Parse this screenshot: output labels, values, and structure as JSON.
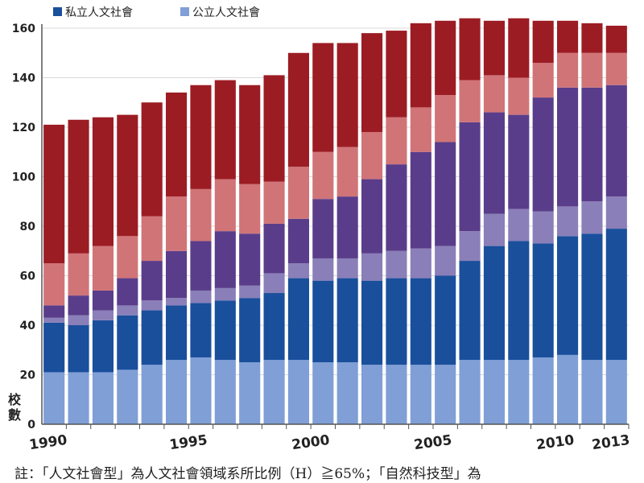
{
  "chart_data": {
    "type": "bar",
    "stacked": true,
    "title": "",
    "xlabel": "",
    "ylabel": "校數",
    "ylim": [
      0,
      165
    ],
    "yticks": [
      0,
      20,
      40,
      60,
      80,
      100,
      120,
      140,
      160
    ],
    "grid": true,
    "legend_position": "top-left",
    "x": [
      1990,
      1991,
      1992,
      1993,
      1994,
      1995,
      1996,
      1997,
      1998,
      1999,
      2000,
      2001,
      2002,
      2003,
      2004,
      2005,
      2006,
      2007,
      2008,
      2009,
      2010,
      2011,
      2012,
      2013
    ],
    "xtick_labels": [
      "1990",
      "1995",
      "2000",
      "2005",
      "2010",
      "2013"
    ],
    "legend": [
      {
        "name": "私立人文社會",
        "color": "#1a4f9c"
      },
      {
        "name": "公立人文社會",
        "color": "#7f9fd6"
      }
    ],
    "segments": [
      {
        "key": "public_humanities",
        "color": "#7f9fd6",
        "values": [
          21,
          21,
          21,
          22,
          24,
          26,
          27,
          26,
          25,
          26,
          26,
          25,
          25,
          24,
          24,
          24,
          24,
          26,
          26,
          26,
          27,
          28,
          26,
          26
        ]
      },
      {
        "key": "private_humanities",
        "color": "#1a4f9c",
        "values": [
          20,
          19,
          21,
          22,
          22,
          22,
          22,
          24,
          26,
          27,
          33,
          33,
          34,
          34,
          35,
          35,
          36,
          40,
          46,
          48,
          46,
          48,
          51,
          53
        ]
      },
      {
        "key": "public_group3",
        "color": "#8a7fb8",
        "values": [
          2,
          4,
          4,
          4,
          4,
          3,
          5,
          5,
          5,
          8,
          6,
          9,
          8,
          11,
          11,
          12,
          12,
          12,
          13,
          13,
          13,
          12,
          13,
          13
        ]
      },
      {
        "key": "private_group3",
        "color": "#5a3d8a",
        "values": [
          5,
          8,
          8,
          11,
          16,
          19,
          20,
          23,
          21,
          20,
          18,
          24,
          25,
          30,
          35,
          39,
          42,
          44,
          41,
          38,
          46,
          48,
          46,
          45
        ]
      },
      {
        "key": "public_group2",
        "color": "#d07478",
        "values": [
          17,
          17,
          18,
          17,
          18,
          22,
          21,
          21,
          20,
          17,
          21,
          19,
          20,
          19,
          19,
          18,
          19,
          17,
          15,
          15,
          14,
          14,
          14,
          13
        ]
      },
      {
        "key": "private_group2",
        "color": "#9c1c24",
        "values": [
          56,
          54,
          52,
          49,
          46,
          42,
          42,
          40,
          40,
          43,
          46,
          44,
          42,
          40,
          35,
          34,
          30,
          25,
          22,
          24,
          17,
          13,
          12,
          11
        ]
      }
    ]
  },
  "footnote": "註：「人文社會型」為人文社會領域系所比例（H）≧65%；「自然科技型」為"
}
